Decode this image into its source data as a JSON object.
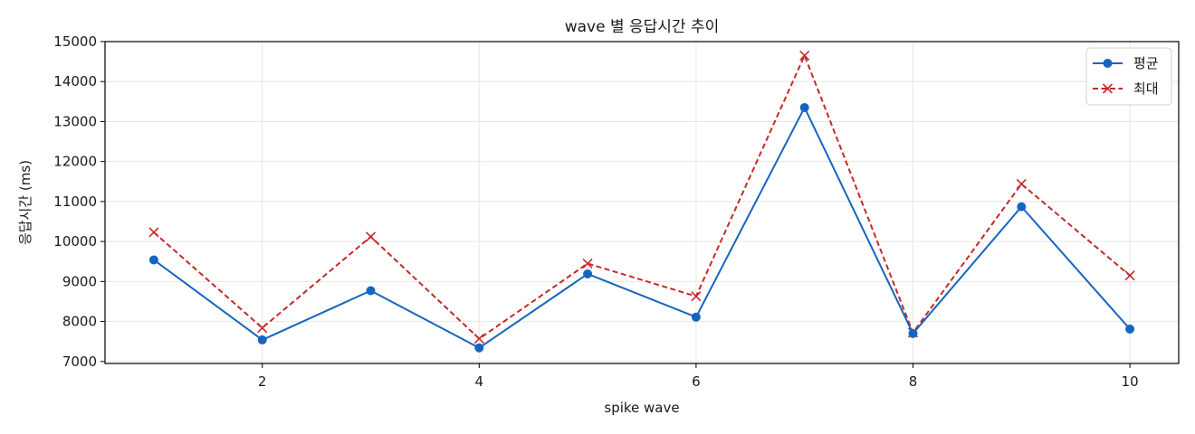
{
  "chart_data": {
    "type": "line",
    "title": "wave 별 응답시간 추이",
    "xlabel": "spike wave",
    "ylabel": "응답시간 (ms)",
    "x": [
      1,
      2,
      3,
      4,
      5,
      6,
      7,
      8,
      9,
      10
    ],
    "xlim": [
      0.55,
      10.45
    ],
    "ylim": [
      6950,
      15000
    ],
    "xticks": [
      2,
      4,
      6,
      8,
      10
    ],
    "yticks": [
      7000,
      8000,
      9000,
      10000,
      11000,
      12000,
      13000,
      14000,
      15000
    ],
    "grid": true,
    "legend_position": "top-right",
    "series": [
      {
        "name": "평균",
        "values": [
          9540,
          7540,
          8770,
          7340,
          9190,
          8110,
          13350,
          7700,
          10870,
          7810
        ],
        "color": "#1565c0",
        "line_style": "solid",
        "marker": "circle"
      },
      {
        "name": "최대",
        "values": [
          10230,
          7840,
          10120,
          7570,
          9450,
          8630,
          14650,
          7720,
          11440,
          9150
        ],
        "color": "#c62828",
        "line_style": "dashed",
        "marker": "x"
      }
    ]
  }
}
